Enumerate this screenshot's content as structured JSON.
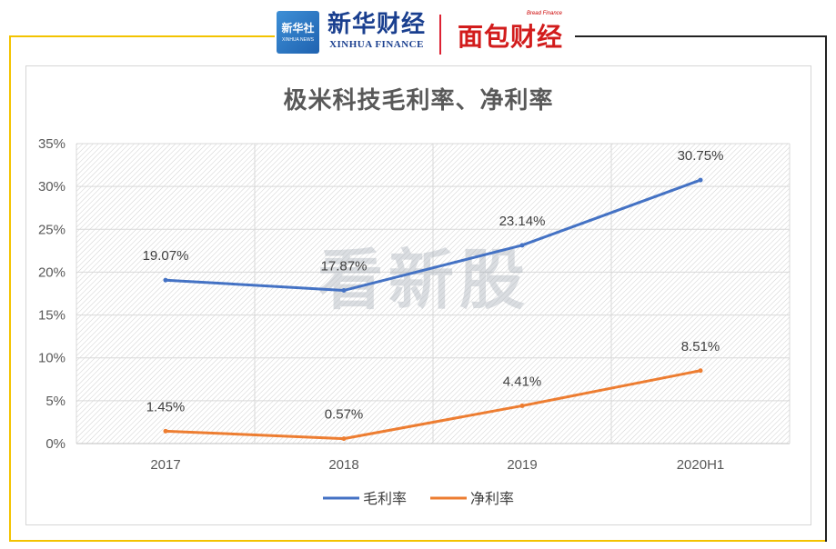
{
  "header": {
    "xinhua_box_cn": "新华社",
    "xinhua_box_en": "XINHUA NEWS",
    "xinhua_finance_cn": "新华财经",
    "xinhua_finance_en": "XINHUA FINANCE",
    "bread_finance_en": "Bread Finance",
    "bread_finance_cn": "面包财经"
  },
  "watermark": "看新股",
  "colors": {
    "gross_margin": "#4472c4",
    "net_margin": "#ed7d31",
    "frame_yellow": "#f3c300"
  },
  "chart_data": {
    "type": "line",
    "title": "极米科技毛利率、净利率",
    "categories": [
      "2017",
      "2018",
      "2019",
      "2020H1"
    ],
    "series": [
      {
        "name": "毛利率",
        "values": [
          19.07,
          17.87,
          23.14,
          30.75
        ],
        "labels": [
          "19.07%",
          "17.87%",
          "23.14%",
          "30.75%"
        ],
        "color": "#4472c4"
      },
      {
        "name": "净利率",
        "values": [
          1.45,
          0.57,
          4.41,
          8.51
        ],
        "labels": [
          "1.45%",
          "0.57%",
          "4.41%",
          "8.51%"
        ],
        "color": "#ed7d31"
      }
    ],
    "ylim": [
      0,
      35
    ],
    "yticks": [
      "0%",
      "5%",
      "10%",
      "15%",
      "20%",
      "25%",
      "30%",
      "35%"
    ],
    "ytick_values": [
      0,
      5,
      10,
      15,
      20,
      25,
      30,
      35
    ],
    "grid": true,
    "legend": "bottom"
  }
}
